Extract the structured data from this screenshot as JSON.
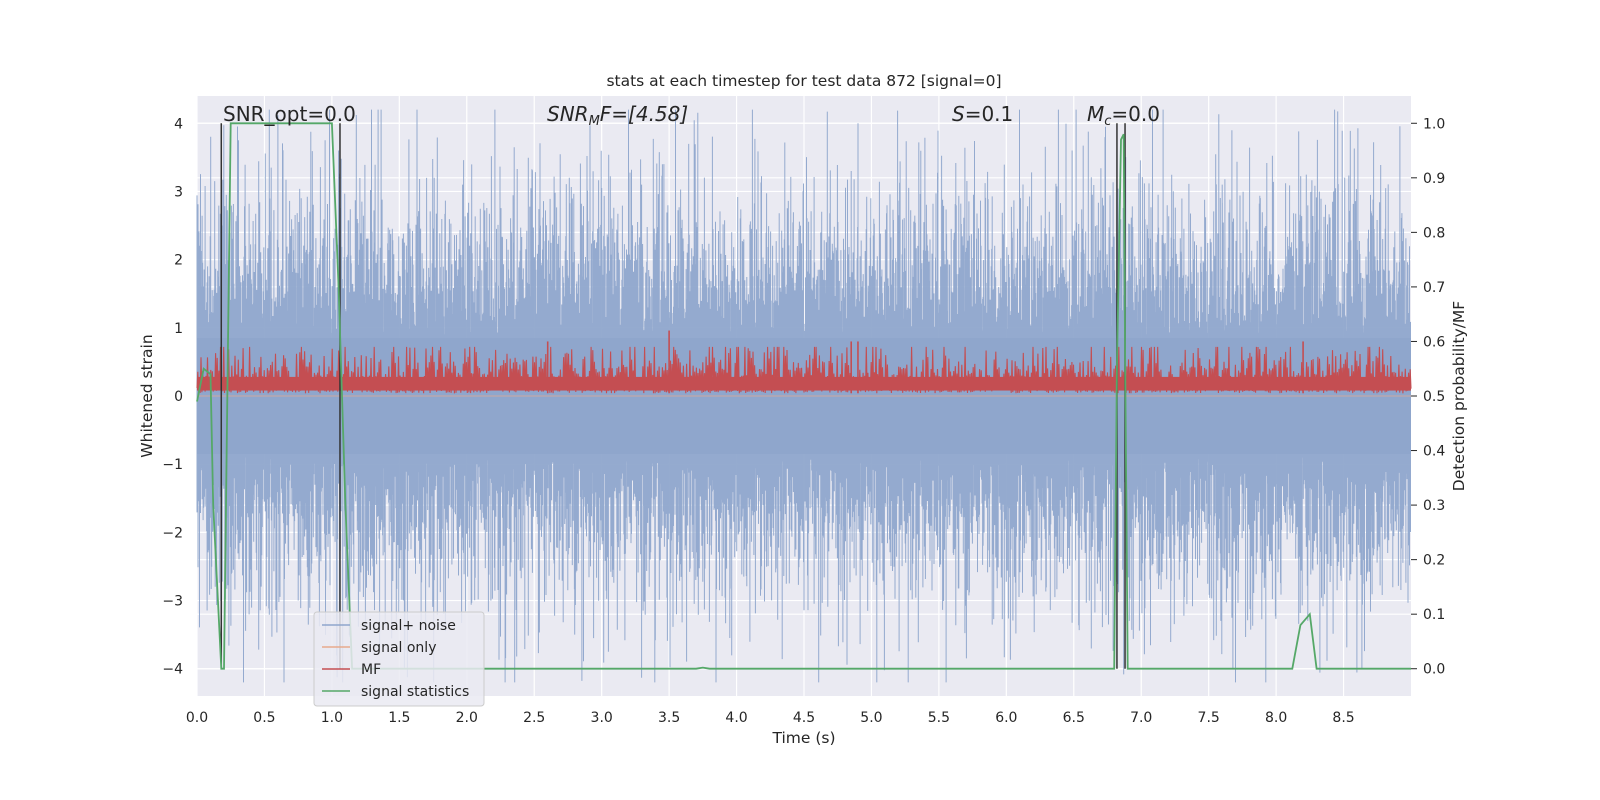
{
  "chart_data": {
    "type": "line",
    "title": "stats at each timestep for test data 872 [signal=0]",
    "xlabel": "Time (s)",
    "ylabel": "Whitened strain",
    "y2label": "Detection probability/MF",
    "xlim": [
      0.0,
      9.0
    ],
    "ylim": [
      -4.4,
      4.4
    ],
    "y2lim": [
      -0.05,
      1.05
    ],
    "xticks": [
      0.0,
      0.5,
      1.0,
      1.5,
      2.0,
      2.5,
      3.0,
      3.5,
      4.0,
      4.5,
      5.0,
      5.5,
      6.0,
      6.5,
      7.0,
      7.5,
      8.0,
      8.5
    ],
    "xtick_labels": [
      "0.0",
      "0.5",
      "1.0",
      "1.5",
      "2.0",
      "2.5",
      "3.0",
      "3.5",
      "4.0",
      "4.5",
      "5.0",
      "5.5",
      "6.0",
      "6.5",
      "7.0",
      "7.5",
      "8.0",
      "8.5"
    ],
    "yticks": [
      -4,
      -3,
      -2,
      -1,
      0,
      1,
      2,
      3,
      4
    ],
    "ytick_labels": [
      "−4",
      "−3",
      "−2",
      "−1",
      "0",
      "1",
      "2",
      "3",
      "4"
    ],
    "y2ticks": [
      0.0,
      0.1,
      0.2,
      0.3,
      0.4,
      0.5,
      0.6,
      0.7,
      0.8,
      0.9,
      1.0
    ],
    "y2tick_labels": [
      "0.0",
      "0.1",
      "0.2",
      "0.3",
      "0.4",
      "0.5",
      "0.6",
      "0.7",
      "0.8",
      "0.9",
      "1.0"
    ],
    "grid": true,
    "legend_position": "lower-left",
    "annotations": {
      "snr_opt": "SNR_opt=0.0",
      "snr_mf_sym": "SNR",
      "snr_mf_sub": "M",
      "snr_mf_rest": "F=[4.58]",
      "s_sym": "S",
      "s_rest": "=0.1",
      "mc_sym": "M",
      "mc_sub": "c",
      "mc_rest": "=0.0"
    },
    "series": [
      {
        "name": "signal+ noise",
        "color": "#8fa6cc",
        "axis": "left",
        "style": "dense-noise",
        "envelope_typical": 1.4,
        "envelope_extremes": [
          {
            "t": 0.55,
            "y": 3.35
          },
          {
            "t": 0.95,
            "y": 3.75
          },
          {
            "t": 1.05,
            "y": 3.6
          },
          {
            "t": 3.45,
            "y": 3.4
          },
          {
            "t": 4.85,
            "y": 3.3
          },
          {
            "t": 4.9,
            "y": 4.0
          },
          {
            "t": 7.6,
            "y": 3.1
          },
          {
            "t": 8.7,
            "y": 2.95
          },
          {
            "t": 0.75,
            "y": -3.0
          },
          {
            "t": 2.8,
            "y": -3.5
          },
          {
            "t": 3.05,
            "y": -3.75
          },
          {
            "t": 3.95,
            "y": -3.55
          },
          {
            "t": 7.68,
            "y": -4.0
          },
          {
            "t": 8.6,
            "y": -3.2
          }
        ]
      },
      {
        "name": "signal only",
        "color": "#e8a98c",
        "axis": "left",
        "x": [
          0.0,
          9.0
        ],
        "y": [
          0.0,
          0.0
        ]
      },
      {
        "name": "MF",
        "color": "#c44e52",
        "axis": "right",
        "style": "dense-noise-band",
        "band_low": 0.505,
        "band_typical_high": 0.565,
        "peaks": [
          {
            "t": 2.6,
            "y": 0.6
          },
          {
            "t": 3.5,
            "y": 0.62
          },
          {
            "t": 4.85,
            "y": 0.6
          },
          {
            "t": 4.9,
            "y": 0.6
          },
          {
            "t": 8.2,
            "y": 0.6
          }
        ]
      },
      {
        "name": "signal statistics",
        "color": "#55a868",
        "axis": "right",
        "x": [
          0.0,
          0.05,
          0.1,
          0.12,
          0.18,
          0.2,
          0.25,
          0.3,
          1.0,
          1.05,
          1.1,
          1.15,
          3.7,
          3.75,
          3.8,
          6.8,
          6.82,
          6.85,
          6.87,
          6.88,
          6.9,
          6.92,
          6.95,
          8.12,
          8.18,
          8.25,
          8.3,
          9.0
        ],
        "y": [
          0.49,
          0.55,
          0.54,
          0.3,
          0.0,
          0.0,
          1.0,
          1.0,
          1.0,
          0.7,
          0.3,
          0.0,
          0.0,
          0.002,
          0.0,
          0.0,
          0.55,
          0.97,
          0.98,
          0.6,
          0.0,
          0.0,
          0.0,
          0.0,
          0.08,
          0.1,
          0.0,
          0.0
        ]
      },
      {
        "name": "markers",
        "color": "#333333",
        "axis": "right",
        "style": "vertical-lines",
        "x": [
          0.18,
          1.06,
          6.82,
          6.88
        ],
        "y_top": 1.0
      }
    ]
  },
  "legend": {
    "items": [
      {
        "label": "signal+ noise",
        "color": "#8fa6cc"
      },
      {
        "label": "signal only",
        "color": "#e8a98c"
      },
      {
        "label": "MF",
        "color": "#c44e52"
      },
      {
        "label": "signal statistics",
        "color": "#55a868"
      }
    ]
  },
  "colors": {
    "plot_bg": "#eaeaf2",
    "grid": "#ffffff",
    "text": "#262626"
  }
}
